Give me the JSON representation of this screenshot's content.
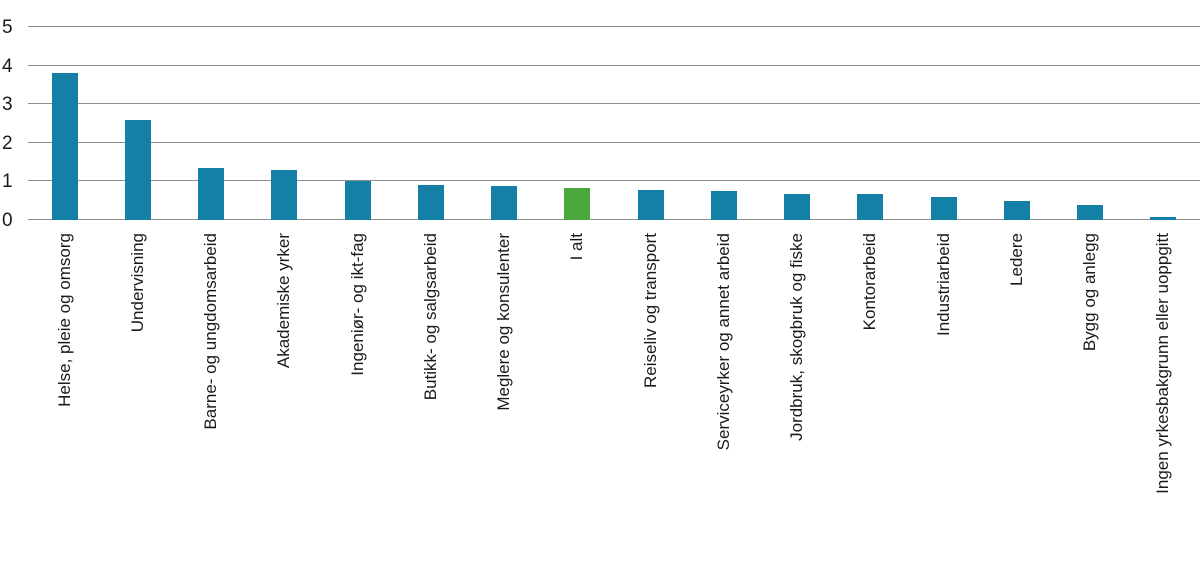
{
  "chart_data": {
    "type": "bar",
    "title": "",
    "xlabel": "",
    "ylabel": "",
    "categories": [
      "Helse, pleie og omsorg",
      "Undervisning",
      "Barne- og ungdomsarbeid",
      "Akademiske yrker",
      "Ingeniør- og ikt-fag",
      "Butikk- og salgsarbeid",
      "Meglere og konsulenter",
      "I alt",
      "Reiseliv og transport",
      "Serviceyrker og annet arbeid",
      "Jordbruk, skogbruk og fiske",
      "Kontorarbeid",
      "Industriarbeid",
      "Ledere",
      "Bygg og anlegg",
      "Ingen yrkesbakgrunn eller uoppgitt"
    ],
    "values": [
      3.8,
      2.6,
      1.35,
      1.3,
      1.0,
      0.9,
      0.88,
      0.82,
      0.78,
      0.75,
      0.68,
      0.68,
      0.6,
      0.5,
      0.4,
      0.07
    ],
    "highlight_index": 7,
    "highlight_category": "I alt",
    "y_ticks": [
      0,
      1,
      2,
      3,
      4,
      5
    ],
    "ylim": [
      0,
      5
    ],
    "grid": true,
    "legend": "none",
    "colors": {
      "bar": "#1580a5",
      "highlight": "#4aa83e",
      "gridline": "#8f8f8f",
      "text": "#1a1a1a",
      "background": "#ffffff"
    }
  }
}
